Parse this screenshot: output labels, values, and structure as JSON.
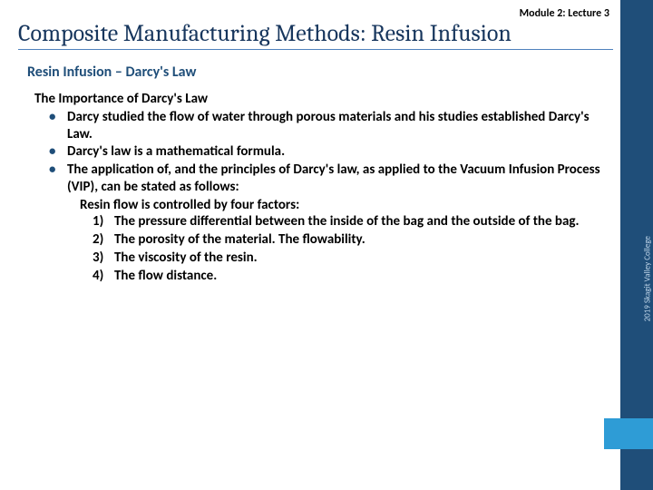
{
  "header": {
    "module_label": "Module 2: Lecture 3",
    "main_title": "Composite Manufacturing Methods: Resin Infusion"
  },
  "section": {
    "title": "Resin Infusion – Darcy's Law"
  },
  "content": {
    "sub_heading": "The Importance of Darcy's Law",
    "bullets": [
      "Darcy studied the flow of water through porous materials and his studies established Darcy's Law.",
      "Darcy's law is a mathematical formula.",
      "The application of, and the principles of Darcy's law, as applied to the Vacuum Infusion Process (VIP), can be stated as follows:"
    ],
    "factors_intro": "Resin flow is controlled by four factors:",
    "factors": [
      {
        "n": "1)",
        "t": "The pressure differential between the inside of the bag and the outside of the bag."
      },
      {
        "n": "2)",
        "t": "The porosity of the material. The flowability."
      },
      {
        "n": "3)",
        "t": "The viscosity of the resin."
      },
      {
        "n": "4)",
        "t": "The flow distance."
      }
    ]
  },
  "sidebar": {
    "credit": "2019 Skagit Valley College"
  },
  "colors": {
    "dark_blue": "#1f4e79",
    "accent_blue": "#2e9cd6",
    "title_blue": "#17365d",
    "rule_blue": "#4f81bd"
  }
}
